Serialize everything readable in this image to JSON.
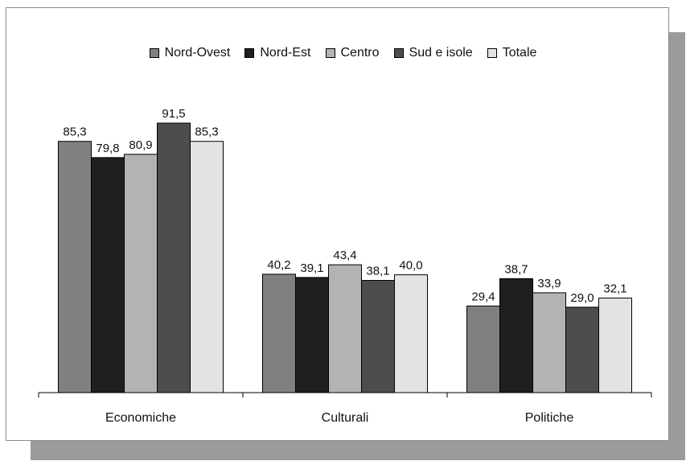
{
  "chart_data": {
    "type": "bar",
    "categories": [
      "Economiche",
      "Culturali",
      "Politiche"
    ],
    "series": [
      {
        "name": "Nord-Ovest",
        "color": "#808080",
        "values": [
          85.3,
          40.2,
          29.4
        ],
        "labels": [
          "85,3",
          "40,2",
          "29,4"
        ]
      },
      {
        "name": "Nord-Est",
        "color": "#1f1f1f",
        "values": [
          79.8,
          39.1,
          38.7
        ],
        "labels": [
          "79,8",
          "39,1",
          "38,7"
        ]
      },
      {
        "name": "Centro",
        "color": "#b3b3b3",
        "values": [
          80.9,
          43.4,
          33.9
        ],
        "labels": [
          "80,9",
          "43,4",
          "33,9"
        ]
      },
      {
        "name": "Sud e isole",
        "color": "#4d4d4d",
        "values": [
          91.5,
          38.1,
          29.0
        ],
        "labels": [
          "91,5",
          "38,1",
          "29,0"
        ]
      },
      {
        "name": "Totale",
        "color": "#e3e3e3",
        "values": [
          85.3,
          40.0,
          32.1
        ],
        "labels": [
          "85,3",
          "40,0",
          "32,1"
        ]
      }
    ],
    "ylim": [
      0,
      100
    ],
    "grid": false,
    "legend_position": "top"
  }
}
